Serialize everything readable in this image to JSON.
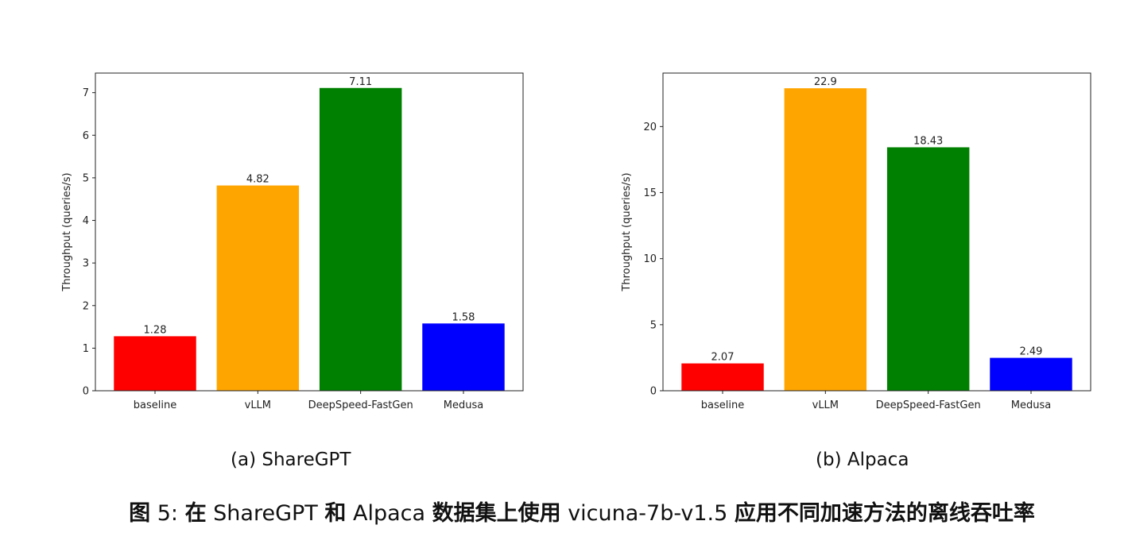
{
  "chart_data": [
    {
      "type": "bar",
      "categories": [
        "baseline",
        "vLLM",
        "DeepSpeed-FastGen",
        "Medusa"
      ],
      "values": [
        1.28,
        4.82,
        7.11,
        1.58
      ],
      "data_labels": [
        "1.28",
        "4.82",
        "7.11",
        "1.58"
      ],
      "colors": [
        "#ff0000",
        "#ffa500",
        "#008000",
        "#0000ff"
      ],
      "title": "",
      "xlabel": "",
      "ylabel": "Throughput (queries/s)",
      "ylim": [
        0,
        7.46
      ],
      "yticks": [
        0,
        1,
        2,
        3,
        4,
        5,
        6,
        7
      ],
      "grid": false,
      "subcaption": "(a) ShareGPT"
    },
    {
      "type": "bar",
      "categories": [
        "baseline",
        "vLLM",
        "DeepSpeed-FastGen",
        "Medusa"
      ],
      "values": [
        2.07,
        22.9,
        18.43,
        2.49
      ],
      "data_labels": [
        "2.07",
        "22.9",
        "18.43",
        "2.49"
      ],
      "colors": [
        "#ff0000",
        "#ffa500",
        "#008000",
        "#0000ff"
      ],
      "title": "",
      "xlabel": "",
      "ylabel": "Throughput (queries/s)",
      "ylim": [
        0,
        24.05
      ],
      "yticks": [
        0,
        5,
        10,
        15,
        20
      ],
      "grid": false,
      "subcaption": "(b) Alpaca"
    }
  ],
  "caption": {
    "label": "图 5:",
    "part1": "在",
    "dataset1": "ShareGPT",
    "part2": "和",
    "dataset2": "Alpaca",
    "part3": "数据集上使用",
    "model": "vicuna-7b-v1.5",
    "part4": "应用不同加速方法的离线吞吐率"
  }
}
